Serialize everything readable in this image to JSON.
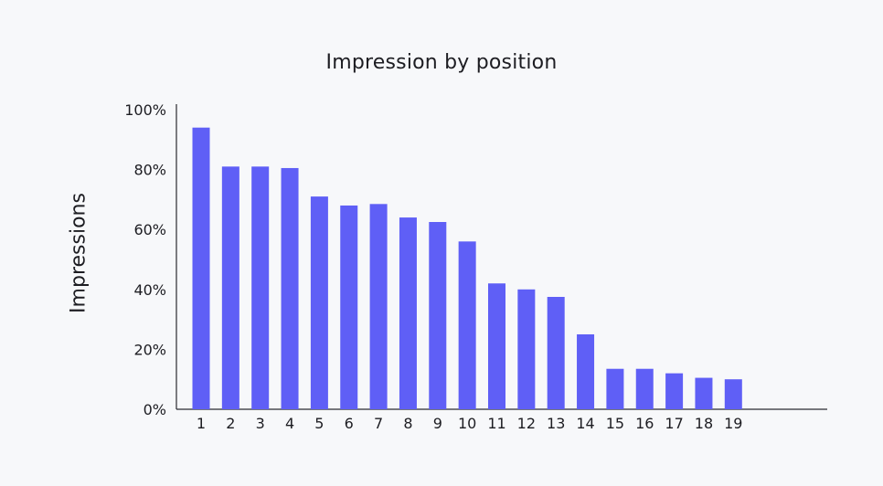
{
  "chart_data": {
    "type": "bar",
    "title": "Impression by position",
    "xlabel": "",
    "ylabel": "Impressions",
    "categories": [
      "1",
      "2",
      "3",
      "4",
      "5",
      "6",
      "7",
      "8",
      "9",
      "10",
      "11",
      "12",
      "13",
      "14",
      "15",
      "16",
      "17",
      "18",
      "19"
    ],
    "values": [
      94,
      81,
      81,
      80.5,
      71,
      68,
      68.5,
      64,
      62.5,
      56,
      42,
      40,
      37.5,
      25,
      13.5,
      13.5,
      12,
      10.5,
      10
    ],
    "ylim": [
      0,
      100
    ],
    "yticks": [
      0,
      20,
      40,
      60,
      80,
      100
    ],
    "ytick_labels": [
      "0%",
      "20%",
      "40%",
      "60%",
      "80%",
      "100%"
    ],
    "bar_color": "#5f5ff6",
    "grid": false,
    "legend": "none"
  }
}
